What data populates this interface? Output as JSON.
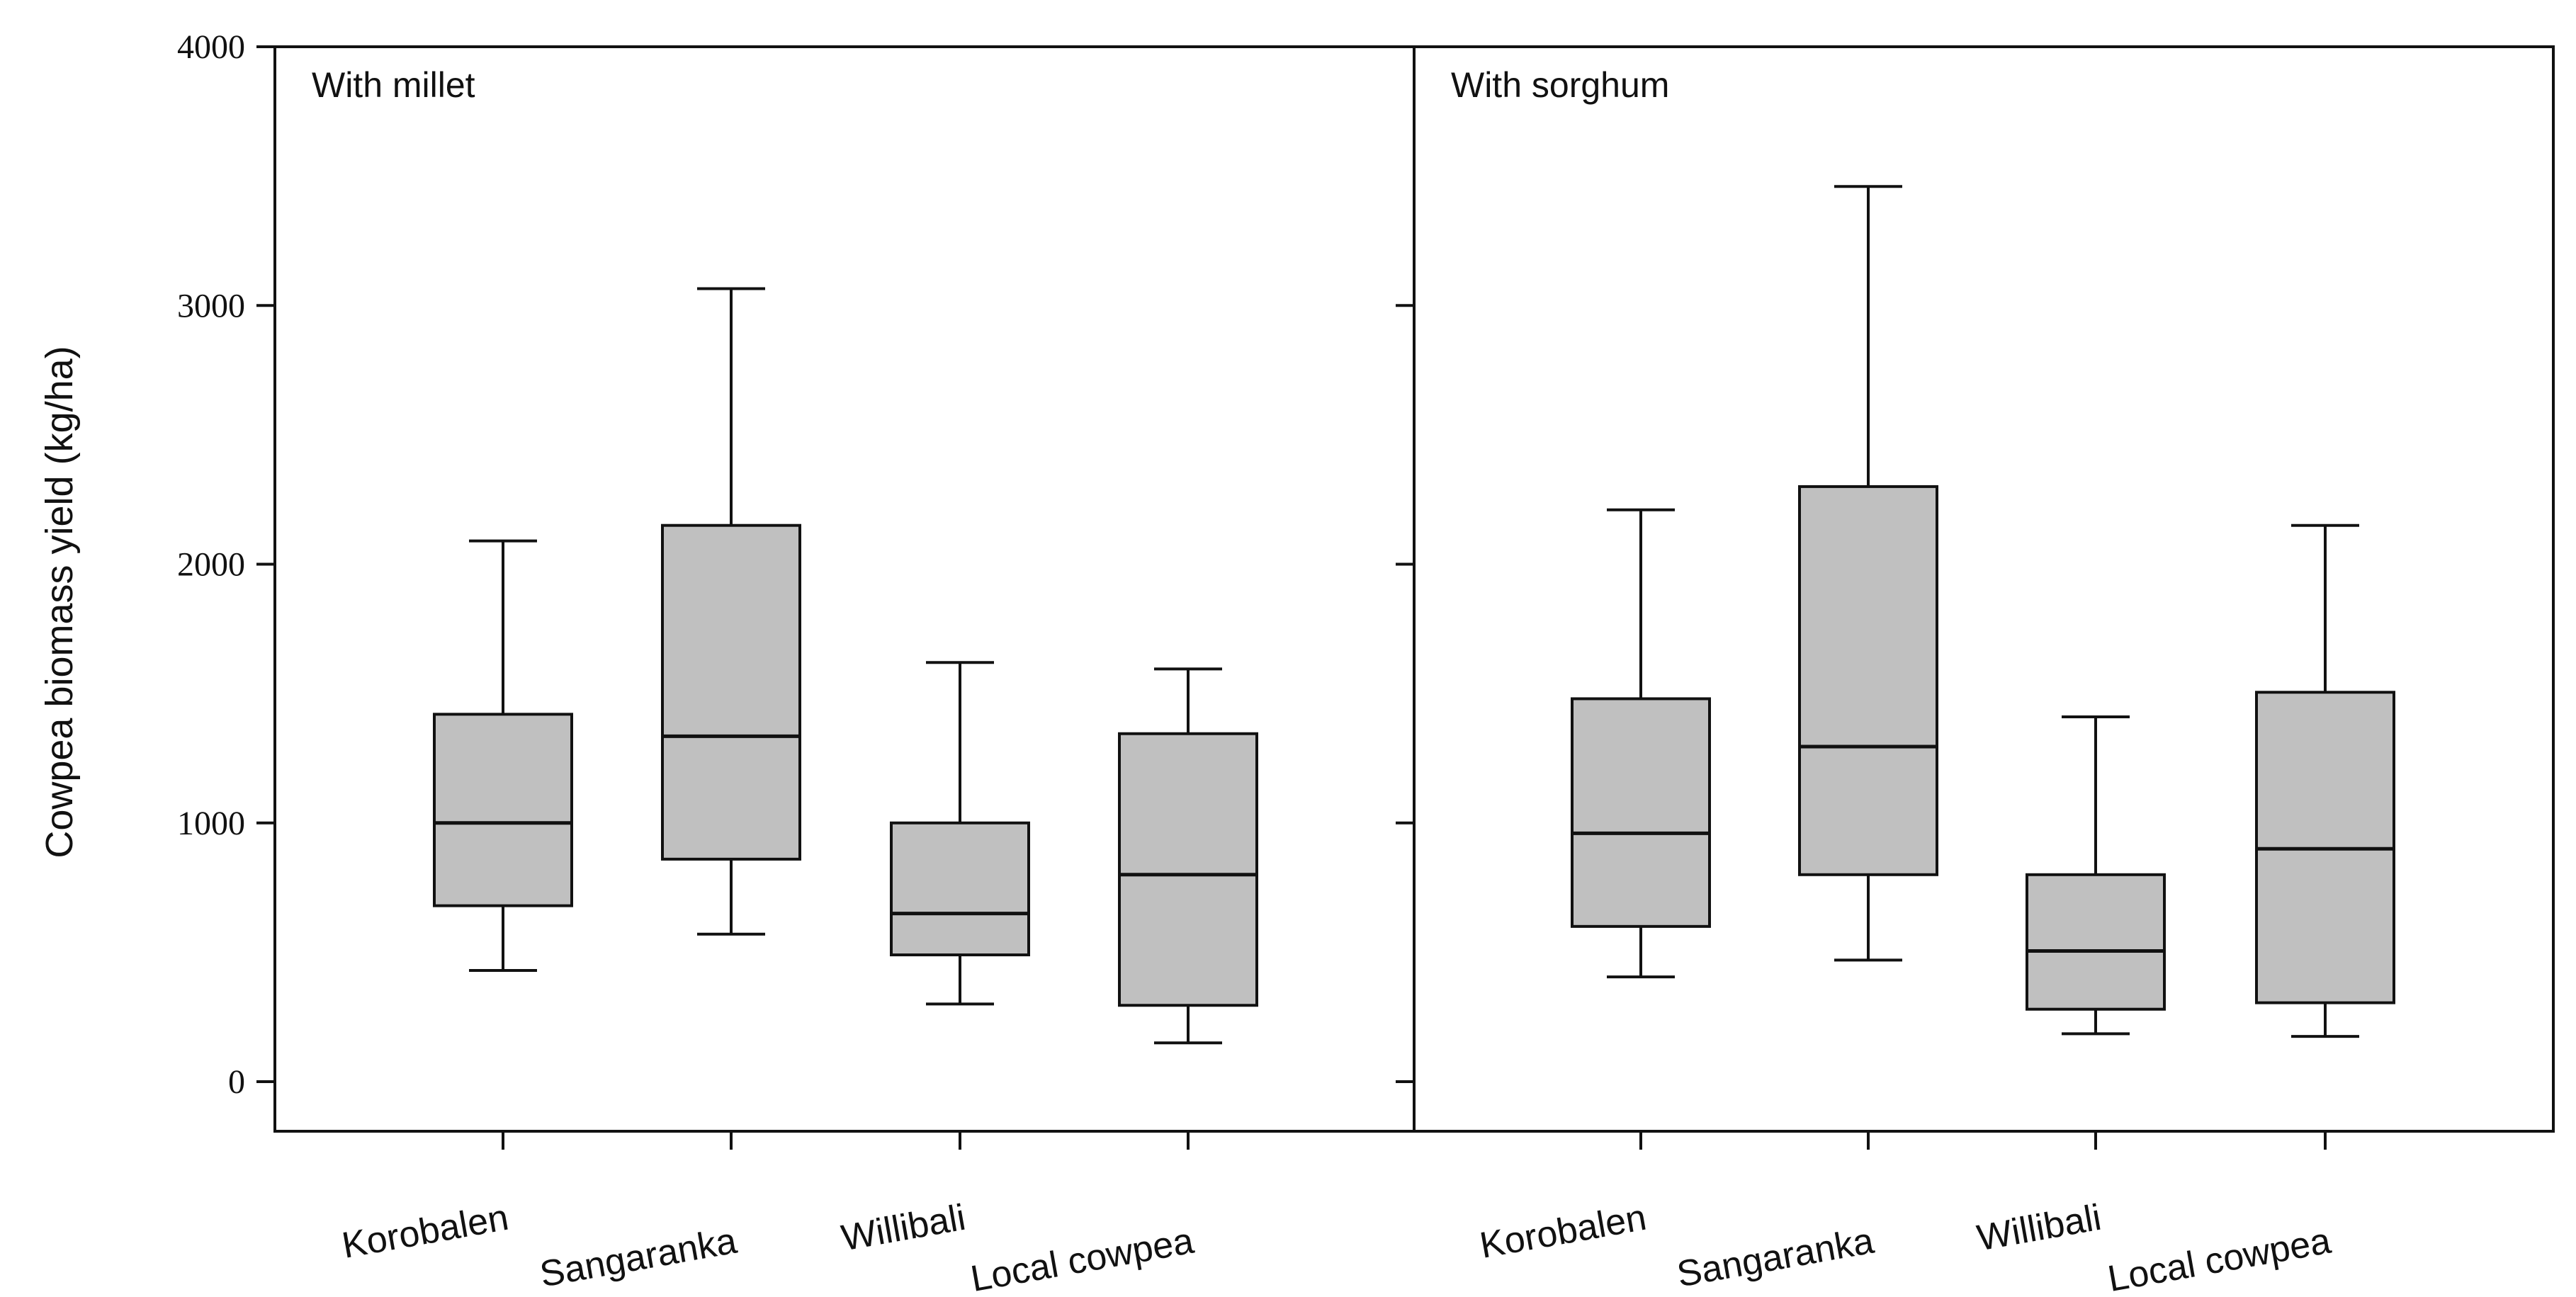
{
  "chart_data": {
    "type": "boxplot",
    "ylabel": "Cowpea biomass yield (kg/ha)",
    "ylim": [
      0,
      4000
    ],
    "yticks": [
      0,
      1000,
      2000,
      3000,
      4000
    ],
    "ytick_labels": [
      "0",
      "1000",
      "2000",
      "3000",
      "4000"
    ],
    "grid": false,
    "categories": [
      "Korobalen",
      "Sangaranka",
      "Willibali",
      "Local cowpea"
    ],
    "panels": [
      {
        "title": "With millet",
        "boxes": [
          {
            "category": "Korobalen",
            "whisker_low": 430,
            "q1": 680,
            "median": 1000,
            "q3": 1420,
            "whisker_high": 2090
          },
          {
            "category": "Sangaranka",
            "whisker_low": 570,
            "q1": 860,
            "median": 1335,
            "q3": 2150,
            "whisker_high": 3065
          },
          {
            "category": "Willibali",
            "whisker_low": 300,
            "q1": 490,
            "median": 650,
            "q3": 1000,
            "whisker_high": 1620
          },
          {
            "category": "Local cowpea",
            "whisker_low": 150,
            "q1": 295,
            "median": 800,
            "q3": 1345,
            "whisker_high": 1595
          }
        ]
      },
      {
        "title": "With sorghum",
        "boxes": [
          {
            "category": "Korobalen",
            "whisker_low": 405,
            "q1": 600,
            "median": 960,
            "q3": 1480,
            "whisker_high": 2210
          },
          {
            "category": "Sangaranka",
            "whisker_low": 470,
            "q1": 800,
            "median": 1295,
            "q3": 2300,
            "whisker_high": 3460
          },
          {
            "category": "Willibali",
            "whisker_low": 185,
            "q1": 280,
            "median": 505,
            "q3": 800,
            "whisker_high": 1410
          },
          {
            "category": "Local cowpea",
            "whisker_low": 175,
            "q1": 305,
            "median": 900,
            "q3": 1505,
            "whisker_high": 2150
          }
        ]
      }
    ],
    "colors": {
      "box_fill": "#c0c0c0",
      "stroke": "#111111"
    }
  }
}
